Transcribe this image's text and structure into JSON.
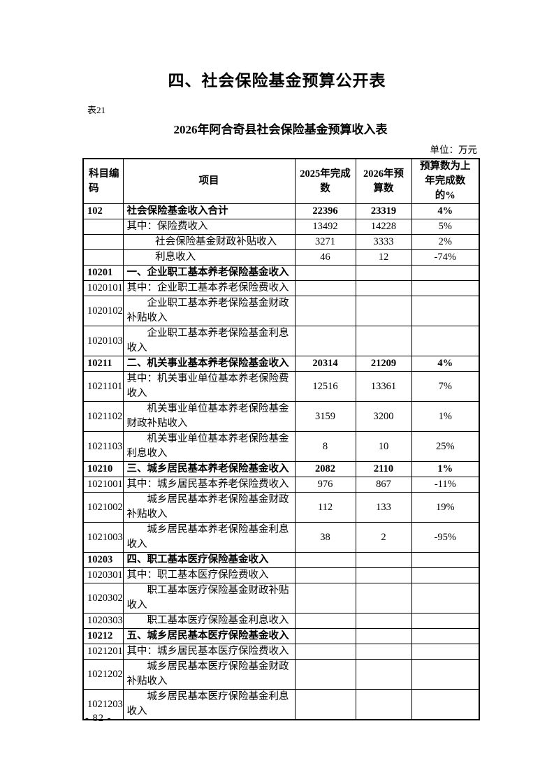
{
  "page": {
    "title": "四、社会保险基金预算公开表",
    "table_label": "表21",
    "subtitle": "2026年阿合奇县社会保险基金预算收入表",
    "unit_note": "单位：万元",
    "page_number": "- 82 -"
  },
  "table": {
    "headers": {
      "code": "科目编码",
      "item": "项目",
      "y2025": "2025年完成数",
      "y2026": "2026年预算数",
      "pct": "预算数为上年完成数的%"
    },
    "rows": [
      {
        "code": "102",
        "item": "社会保险基金收入合计",
        "v2025": "22396",
        "v2026": "23319",
        "pct": "4%"
      },
      {
        "code": "",
        "item": "其中：保险费收入",
        "v2025": "13492",
        "v2026": "14228",
        "pct": "5%"
      },
      {
        "code": "",
        "item": "社会保险基金财政补贴收入",
        "v2025": "3271",
        "v2026": "3333",
        "pct": "2%"
      },
      {
        "code": "",
        "item": "利息收入",
        "v2025": "46",
        "v2026": "12",
        "pct": "-74%"
      },
      {
        "code": "10201",
        "item": "一、企业职工基本养老保险基金收入",
        "v2025": "",
        "v2026": "",
        "pct": ""
      },
      {
        "code": "1020101",
        "item": "其中：企业职工基本养老保险费收入",
        "v2025": "",
        "v2026": "",
        "pct": ""
      },
      {
        "code": "1020102",
        "item": "企业职工基本养老保险基金财政补贴收入",
        "v2025": "",
        "v2026": "",
        "pct": ""
      },
      {
        "code": "1020103",
        "item": "企业职工基本养老保险基金利息收入",
        "v2025": "",
        "v2026": "",
        "pct": ""
      },
      {
        "code": "10211",
        "item": "二、机关事业基本养老保险基金收入",
        "v2025": "20314",
        "v2026": "21209",
        "pct": "4%"
      },
      {
        "code": "1021101",
        "item": "其中：机关事业单位基本养老保险费收入",
        "v2025": "12516",
        "v2026": "13361",
        "pct": "7%"
      },
      {
        "code": "1021102",
        "item": "机关事业单位基本养老保险基金财政补贴收入",
        "v2025": "3159",
        "v2026": "3200",
        "pct": "1%"
      },
      {
        "code": "1021103",
        "item": "机关事业单位基本养老保险基金利息收入",
        "v2025": "8",
        "v2026": "10",
        "pct": "25%"
      },
      {
        "code": "10210",
        "item": "三、城乡居民基本养老保险基金收入",
        "v2025": "2082",
        "v2026": "2110",
        "pct": "1%"
      },
      {
        "code": "1021001",
        "item": "其中：城乡居民基本养老保险费收入",
        "v2025": "976",
        "v2026": "867",
        "pct": "-11%"
      },
      {
        "code": "1021002",
        "item": "城乡居民基本养老保险基金财政补贴收入",
        "v2025": "112",
        "v2026": "133",
        "pct": "19%"
      },
      {
        "code": "1021003",
        "item": "城乡居民基本养老保险基金利息收入",
        "v2025": "38",
        "v2026": "2",
        "pct": "-95%"
      },
      {
        "code": "10203",
        "item": "四、职工基本医疗保险基金收入",
        "v2025": "",
        "v2026": "",
        "pct": ""
      },
      {
        "code": "1020301",
        "item": "其中：职工基本医疗保险费收入",
        "v2025": "",
        "v2026": "",
        "pct": ""
      },
      {
        "code": "1020302",
        "item": "职工基本医疗保险基金财政补贴收入",
        "v2025": "",
        "v2026": "",
        "pct": ""
      },
      {
        "code": "1020303",
        "item": "职工基本医疗保险基金利息收入",
        "v2025": "",
        "v2026": "",
        "pct": ""
      },
      {
        "code": "10212",
        "item": "五、城乡居民基本医疗保险基金收入",
        "v2025": "",
        "v2026": "",
        "pct": ""
      },
      {
        "code": "1021201",
        "item": "其中：城乡居民基本医疗保险费收入",
        "v2025": "",
        "v2026": "",
        "pct": ""
      },
      {
        "code": "1021202",
        "item": "城乡居民基本医疗保险基金财政补贴收入",
        "v2025": "",
        "v2026": "",
        "pct": ""
      },
      {
        "code": "1021203",
        "item": "城乡居民基本医疗保险基金利息收入",
        "v2025": "",
        "v2026": "",
        "pct": ""
      }
    ]
  }
}
